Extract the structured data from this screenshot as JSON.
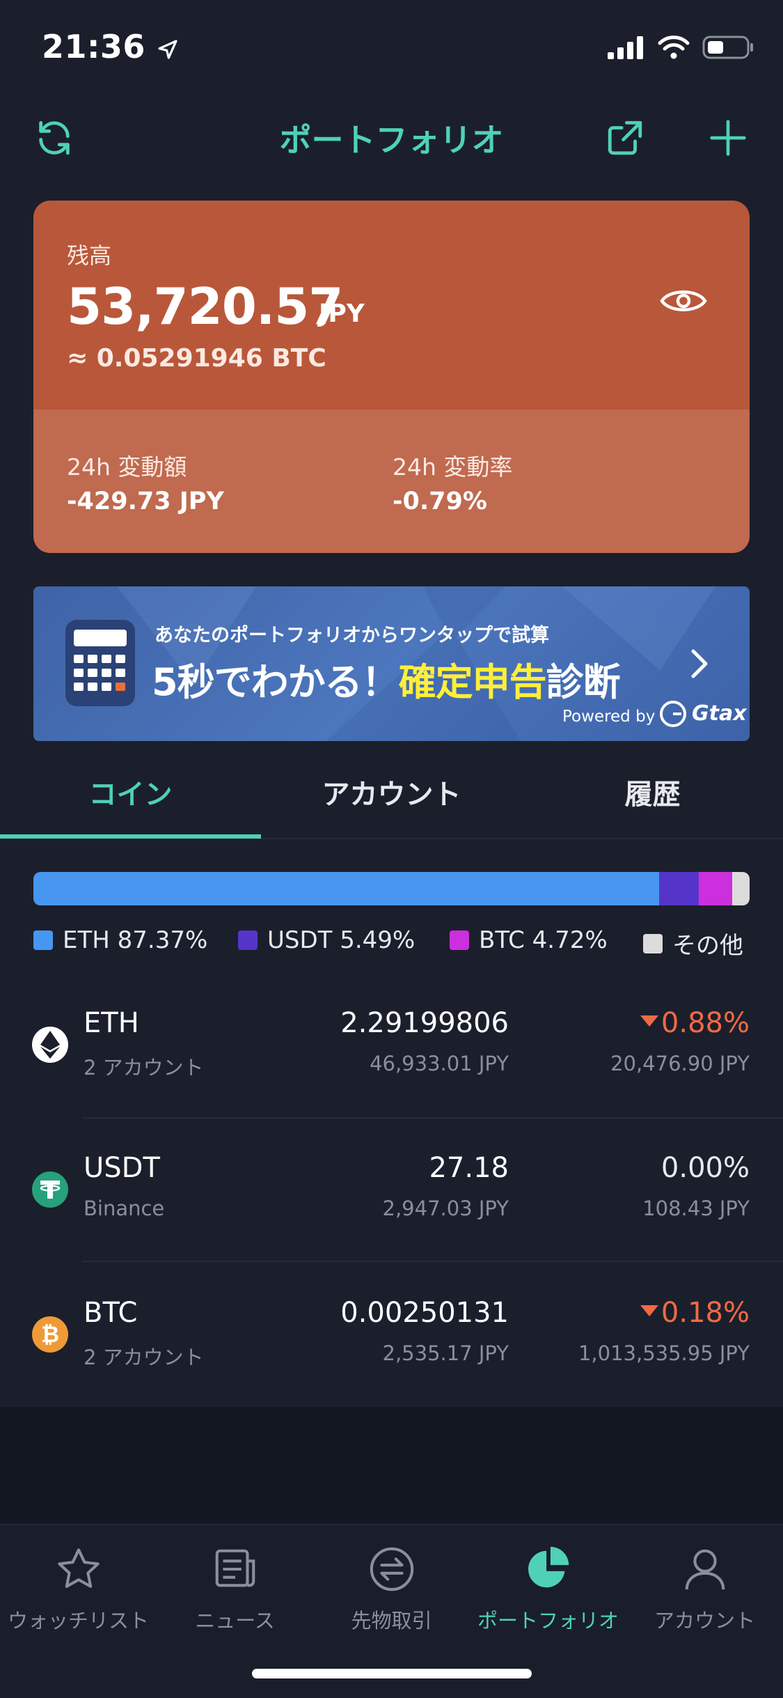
{
  "status_bar": {
    "time": "21:36"
  },
  "header": {
    "title": "ポートフォリオ"
  },
  "balance": {
    "label": "残高",
    "amount": "53,720.57",
    "currency": "JPY",
    "btc_equivalent": "≈ 0.05291946 BTC",
    "change_amount_label": "24h 変動額",
    "change_amount": "-429.73 JPY",
    "change_rate_label": "24h 変動率",
    "change_rate": "-0.79%"
  },
  "banner": {
    "subtitle": "あなたのポートフォリオからワンタップで試算",
    "title_part1": "5秒でわかる！",
    "title_highlight": "確定申告",
    "title_part2": "診断",
    "powered_by": "Powered by",
    "brand": "Gtax"
  },
  "tabs": [
    {
      "label": "コイン",
      "active": true
    },
    {
      "label": "アカウント",
      "active": false
    },
    {
      "label": "履歴",
      "active": false
    }
  ],
  "allocation": [
    {
      "label": "ETH 87.37%",
      "share": 87.37,
      "color": "#4797f0"
    },
    {
      "label": "USDT 5.49%",
      "share": 5.49,
      "color": "#5535c9"
    },
    {
      "label": "BTC 4.72%",
      "share": 4.72,
      "color": "#cc2fde"
    },
    {
      "label": "その他",
      "share": 2.42,
      "color": "#dcdcdc"
    }
  ],
  "coins": [
    {
      "symbol": "ETH",
      "sub": "2 アカウント",
      "amount": "2.29199806",
      "value_jpy": "46,933.01 JPY",
      "change": "0.88%",
      "change_dir": "down",
      "price_jpy": "20,476.90 JPY"
    },
    {
      "symbol": "USDT",
      "sub": "Binance",
      "amount": "27.18",
      "value_jpy": "2,947.03 JPY",
      "change": "0.00%",
      "change_dir": "flat",
      "price_jpy": "108.43 JPY"
    },
    {
      "symbol": "BTC",
      "sub": "2 アカウント",
      "amount": "0.00250131",
      "value_jpy": "2,535.17 JPY",
      "change": "0.18%",
      "change_dir": "down",
      "price_jpy": "1,013,535.95 JPY"
    }
  ],
  "nav": [
    {
      "label": "ウォッチリスト",
      "icon": "star-icon",
      "active": false
    },
    {
      "label": "ニュース",
      "icon": "news-icon",
      "active": false
    },
    {
      "label": "先物取引",
      "icon": "exchange-icon",
      "active": false
    },
    {
      "label": "ポートフォリオ",
      "icon": "pie-chart-icon",
      "active": true
    },
    {
      "label": "アカウント",
      "icon": "user-icon",
      "active": false
    }
  ],
  "colors": {
    "accent": "#4fd1b8",
    "card": "#b9573a",
    "negative": "#f06a45",
    "background": "#1b1f2c"
  }
}
